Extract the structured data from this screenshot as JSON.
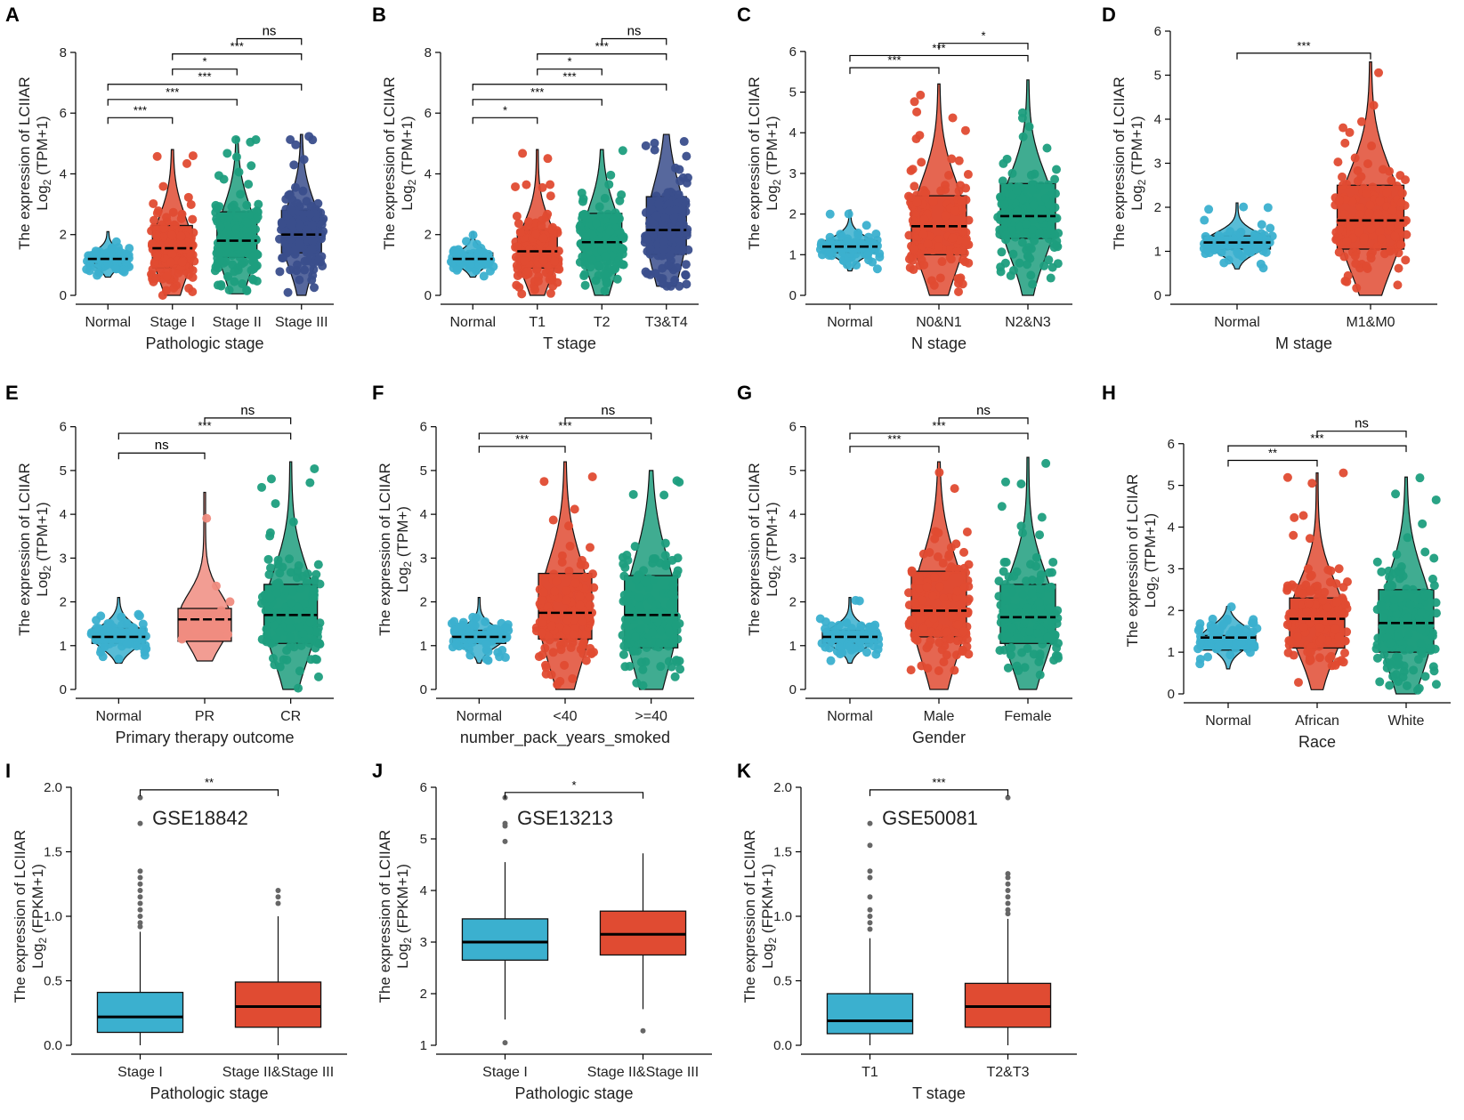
{
  "figure": {
    "ylabel_main": "The expression of LCIIAR"
  },
  "colors": {
    "blue": "#3BB0CF",
    "red": "#E04B32",
    "green": "#1E9E7E",
    "navy": "#3A4E8C",
    "pink": "#F08C80",
    "outlier": "#666666"
  },
  "chart_data": [
    {
      "panel": "A",
      "type": "box-violin",
      "xlabel": "Pathologic stage",
      "ylabel_unit": "(TPM+1)",
      "ylim": [
        0,
        8.7
      ],
      "yticks": [
        0,
        2,
        4,
        6,
        8
      ],
      "categories": [
        "Normal",
        "Stage I",
        "Stage II",
        "Stage III"
      ],
      "boxes": [
        {
          "q1": 1.05,
          "median": 1.2,
          "q3": 1.4,
          "min": 0.6,
          "max": 2.1,
          "color": "blue"
        },
        {
          "q1": 0.9,
          "median": 1.55,
          "q3": 2.3,
          "min": 0.0,
          "max": 4.8,
          "color": "red"
        },
        {
          "q1": 1.25,
          "median": 1.8,
          "q3": 2.75,
          "min": 0.05,
          "max": 5.2,
          "color": "green"
        },
        {
          "q1": 1.4,
          "median": 2.0,
          "q3": 2.8,
          "min": 0.0,
          "max": 5.3,
          "color": "navy"
        }
      ],
      "significance": [
        {
          "from": 0,
          "to": 1,
          "y": 5.85,
          "label": "***"
        },
        {
          "from": 0,
          "to": 2,
          "y": 6.45,
          "label": "***"
        },
        {
          "from": 0,
          "to": 3,
          "y": 6.95,
          "label": "***"
        },
        {
          "from": 1,
          "to": 2,
          "y": 7.45,
          "label": "*"
        },
        {
          "from": 1,
          "to": 3,
          "y": 7.95,
          "label": "***"
        },
        {
          "from": 2,
          "to": 3,
          "y": 8.45,
          "label": "ns"
        }
      ]
    },
    {
      "panel": "B",
      "type": "box-violin",
      "xlabel": "T stage",
      "ylabel_unit": "(TPM+1)",
      "ylim": [
        0,
        8.7
      ],
      "yticks": [
        0,
        2,
        4,
        6,
        8
      ],
      "categories": [
        "Normal",
        "T1",
        "T2",
        "T3&T4"
      ],
      "boxes": [
        {
          "q1": 1.05,
          "median": 1.2,
          "q3": 1.4,
          "min": 0.6,
          "max": 2.1,
          "color": "blue"
        },
        {
          "q1": 0.9,
          "median": 1.45,
          "q3": 2.15,
          "min": 0.0,
          "max": 4.8,
          "color": "red"
        },
        {
          "q1": 1.2,
          "median": 1.75,
          "q3": 2.7,
          "min": 0.0,
          "max": 4.8,
          "color": "green"
        },
        {
          "q1": 1.35,
          "median": 2.15,
          "q3": 3.25,
          "min": 0.3,
          "max": 5.3,
          "color": "navy"
        }
      ],
      "significance": [
        {
          "from": 0,
          "to": 1,
          "y": 5.85,
          "label": "*"
        },
        {
          "from": 0,
          "to": 2,
          "y": 6.45,
          "label": "***"
        },
        {
          "from": 0,
          "to": 3,
          "y": 6.95,
          "label": "***"
        },
        {
          "from": 1,
          "to": 2,
          "y": 7.45,
          "label": "*"
        },
        {
          "from": 1,
          "to": 3,
          "y": 7.95,
          "label": "***"
        },
        {
          "from": 2,
          "to": 3,
          "y": 8.45,
          "label": "ns"
        }
      ]
    },
    {
      "panel": "C",
      "type": "box-violin",
      "xlabel": "N stage",
      "ylabel_unit": "(TPM+1)",
      "ylim": [
        0,
        6.5
      ],
      "yticks": [
        0,
        1,
        2,
        3,
        4,
        5,
        6
      ],
      "categories": [
        "Normal",
        "N0&N1",
        "N2&N3"
      ],
      "boxes": [
        {
          "q1": 1.05,
          "median": 1.2,
          "q3": 1.35,
          "min": 0.6,
          "max": 2.1,
          "color": "blue"
        },
        {
          "q1": 1.0,
          "median": 1.7,
          "q3": 2.45,
          "min": 0.0,
          "max": 5.2,
          "color": "red"
        },
        {
          "q1": 1.4,
          "median": 1.95,
          "q3": 2.75,
          "min": 0.0,
          "max": 5.3,
          "color": "green"
        }
      ],
      "significance": [
        {
          "from": 0,
          "to": 1,
          "y": 5.6,
          "label": "***"
        },
        {
          "from": 0,
          "to": 2,
          "y": 5.9,
          "label": "***"
        },
        {
          "from": 1,
          "to": 2,
          "y": 6.2,
          "label": "*"
        }
      ]
    },
    {
      "panel": "D",
      "type": "box-violin",
      "xlabel": "M stage",
      "ylabel_unit": "(TPM+1)",
      "ylim": [
        0,
        6.0
      ],
      "yticks": [
        0,
        1,
        2,
        3,
        4,
        5,
        6
      ],
      "categories": [
        "Normal",
        "M1&M0"
      ],
      "boxes": [
        {
          "q1": 1.05,
          "median": 1.2,
          "q3": 1.35,
          "min": 0.6,
          "max": 2.1,
          "color": "blue"
        },
        {
          "q1": 1.05,
          "median": 1.7,
          "q3": 2.5,
          "min": 0.0,
          "max": 5.3,
          "color": "red"
        }
      ],
      "significance": [
        {
          "from": 0,
          "to": 1,
          "y": 5.5,
          "label": "***"
        }
      ]
    },
    {
      "panel": "E",
      "type": "box-violin",
      "xlabel": "Primary therapy outcome",
      "ylabel_unit": "(TPM+1)",
      "ylim": [
        0,
        6.4
      ],
      "yticks": [
        0,
        1,
        2,
        3,
        4,
        5,
        6
      ],
      "categories": [
        "Normal",
        "PR",
        "CR"
      ],
      "boxes": [
        {
          "q1": 1.05,
          "median": 1.2,
          "q3": 1.4,
          "min": 0.6,
          "max": 2.1,
          "color": "blue"
        },
        {
          "q1": 1.1,
          "median": 1.6,
          "q3": 1.85,
          "min": 0.65,
          "max": 4.5,
          "color": "pink"
        },
        {
          "q1": 1.05,
          "median": 1.7,
          "q3": 2.4,
          "min": 0.0,
          "max": 5.2,
          "color": "green"
        }
      ],
      "significance": [
        {
          "from": 0,
          "to": 1,
          "y": 5.4,
          "label": "ns"
        },
        {
          "from": 0,
          "to": 2,
          "y": 5.85,
          "label": "***"
        },
        {
          "from": 1,
          "to": 2,
          "y": 6.2,
          "label": "ns"
        }
      ]
    },
    {
      "panel": "F",
      "type": "box-violin",
      "xlabel": "number_pack_years_smoked",
      "ylabel_unit": "(TPM+)",
      "ylim": [
        0,
        6.4
      ],
      "yticks": [
        0,
        1,
        2,
        3,
        4,
        5,
        6
      ],
      "categories": [
        "Normal",
        "<40",
        ">=40"
      ],
      "boxes": [
        {
          "q1": 1.05,
          "median": 1.2,
          "q3": 1.35,
          "min": 0.6,
          "max": 2.1,
          "color": "blue"
        },
        {
          "q1": 1.15,
          "median": 1.75,
          "q3": 2.65,
          "min": 0.0,
          "max": 5.2,
          "color": "red"
        },
        {
          "q1": 0.95,
          "median": 1.7,
          "q3": 2.6,
          "min": 0.0,
          "max": 5.0,
          "color": "green"
        }
      ],
      "significance": [
        {
          "from": 0,
          "to": 1,
          "y": 5.55,
          "label": "***"
        },
        {
          "from": 0,
          "to": 2,
          "y": 5.85,
          "label": "***"
        },
        {
          "from": 1,
          "to": 2,
          "y": 6.2,
          "label": "ns"
        }
      ]
    },
    {
      "panel": "G",
      "type": "box-violin",
      "xlabel": "Gender",
      "ylabel_unit": "(TPM+1)",
      "ylim": [
        0,
        6.4
      ],
      "yticks": [
        0,
        1,
        2,
        3,
        4,
        5,
        6
      ],
      "categories": [
        "Normal",
        "Male",
        "Female"
      ],
      "boxes": [
        {
          "q1": 1.05,
          "median": 1.2,
          "q3": 1.35,
          "min": 0.6,
          "max": 2.1,
          "color": "blue"
        },
        {
          "q1": 1.2,
          "median": 1.8,
          "q3": 2.7,
          "min": 0.0,
          "max": 5.2,
          "color": "red"
        },
        {
          "q1": 1.05,
          "median": 1.65,
          "q3": 2.4,
          "min": 0.0,
          "max": 5.3,
          "color": "green"
        }
      ],
      "significance": [
        {
          "from": 0,
          "to": 1,
          "y": 5.55,
          "label": "***"
        },
        {
          "from": 0,
          "to": 2,
          "y": 5.85,
          "label": "***"
        },
        {
          "from": 1,
          "to": 2,
          "y": 6.2,
          "label": "ns"
        }
      ]
    },
    {
      "panel": "H",
      "type": "box-violin",
      "xlabel": "Race",
      "ylabel_unit": "(TPM+1)",
      "ylim": [
        0,
        6.4
      ],
      "yticks": [
        0,
        1,
        2,
        3,
        4,
        5,
        6
      ],
      "categories": [
        "Normal",
        "African",
        "White"
      ],
      "boxes": [
        {
          "q1": 1.05,
          "median": 1.35,
          "q3": 1.4,
          "min": 0.6,
          "max": 2.1,
          "color": "blue"
        },
        {
          "q1": 1.1,
          "median": 1.8,
          "q3": 2.3,
          "min": 0.1,
          "max": 5.3,
          "color": "red"
        },
        {
          "q1": 1.0,
          "median": 1.7,
          "q3": 2.5,
          "min": 0.0,
          "max": 5.2,
          "color": "green"
        }
      ],
      "significance": [
        {
          "from": 0,
          "to": 1,
          "y": 5.6,
          "label": "**"
        },
        {
          "from": 0,
          "to": 2,
          "y": 5.95,
          "label": "***"
        },
        {
          "from": 1,
          "to": 2,
          "y": 6.3,
          "label": "ns"
        }
      ]
    },
    {
      "panel": "I",
      "type": "box",
      "xlabel": "Pathologic stage",
      "ylabel_unit": "(FPKM+1)",
      "dataset": "GSE18842",
      "ylim": [
        0,
        2.0
      ],
      "yticks": [
        0.0,
        0.5,
        1.0,
        1.5,
        2.0
      ],
      "categories": [
        "Stage I",
        "Stage II&Stage III"
      ],
      "boxes": [
        {
          "q1": 0.1,
          "median": 0.22,
          "q3": 0.41,
          "min": 0.0,
          "max": 0.88,
          "color": "blue",
          "outliers": [
            0.92,
            0.95,
            1.0,
            1.05,
            1.1,
            1.15,
            1.2,
            1.25,
            1.3,
            1.35,
            1.72,
            1.92
          ]
        },
        {
          "q1": 0.14,
          "median": 0.3,
          "q3": 0.49,
          "min": 0.0,
          "max": 1.0,
          "color": "red",
          "outliers": [
            1.1,
            1.15,
            1.2
          ]
        }
      ],
      "significance": [
        {
          "from": 0,
          "to": 1,
          "y": 1.98,
          "label": "**"
        }
      ]
    },
    {
      "panel": "J",
      "type": "box",
      "xlabel": "Pathologic stage",
      "ylabel_unit": "(FPKM+1)",
      "dataset": "GSE13213",
      "ylim": [
        1,
        6
      ],
      "yticks": [
        1,
        2,
        3,
        4,
        5,
        6
      ],
      "categories": [
        "Stage I",
        "Stage II&Stage III"
      ],
      "boxes": [
        {
          "q1": 2.65,
          "median": 3.0,
          "q3": 3.45,
          "min": 1.5,
          "max": 4.55,
          "color": "blue",
          "outliers": [
            1.05,
            4.95,
            5.25,
            5.3,
            5.8
          ]
        },
        {
          "q1": 2.75,
          "median": 3.15,
          "q3": 3.6,
          "min": 1.7,
          "max": 4.72,
          "color": "red",
          "outliers": [
            1.28
          ]
        }
      ],
      "significance": [
        {
          "from": 0,
          "to": 1,
          "y": 5.9,
          "label": "*"
        }
      ]
    },
    {
      "panel": "K",
      "type": "box",
      "xlabel": "T stage",
      "ylabel_unit": "(FPKM+1)",
      "dataset": "GSE50081",
      "ylim": [
        0,
        2.0
      ],
      "yticks": [
        0.0,
        0.5,
        1.0,
        1.5,
        2.0
      ],
      "categories": [
        "T1",
        "T2&T3"
      ],
      "boxes": [
        {
          "q1": 0.09,
          "median": 0.19,
          "q3": 0.4,
          "min": 0.0,
          "max": 0.83,
          "color": "blue",
          "outliers": [
            0.9,
            0.95,
            1.0,
            1.05,
            1.15,
            1.3,
            1.35,
            1.55,
            1.72
          ]
        },
        {
          "q1": 0.14,
          "median": 0.3,
          "q3": 0.48,
          "min": 0.0,
          "max": 0.98,
          "color": "red",
          "outliers": [
            1.02,
            1.05,
            1.1,
            1.15,
            1.2,
            1.25,
            1.3,
            1.33,
            1.92
          ]
        }
      ],
      "significance": [
        {
          "from": 0,
          "to": 1,
          "y": 1.98,
          "label": "***"
        }
      ]
    }
  ]
}
